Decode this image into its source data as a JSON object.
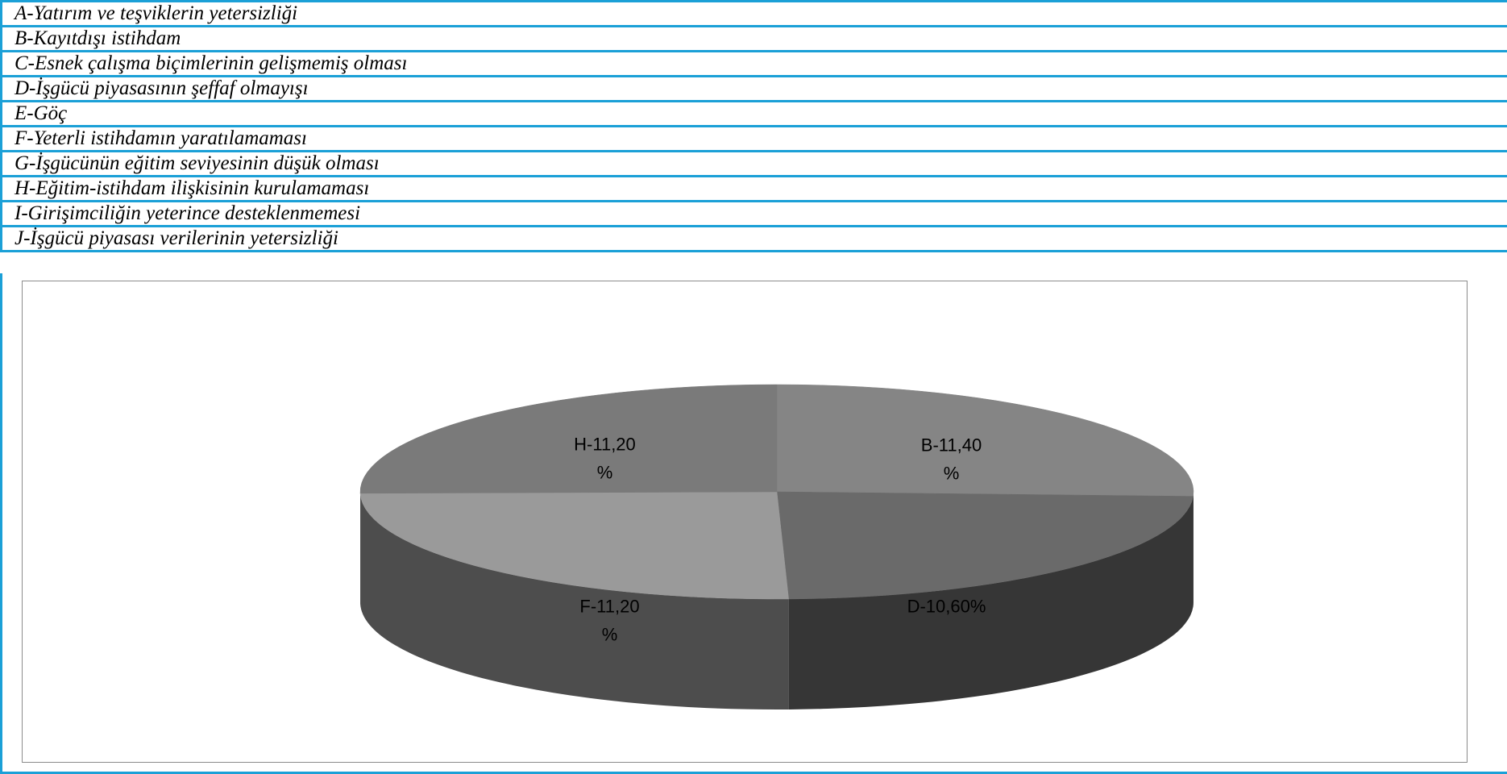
{
  "legend": {
    "rows": [
      {
        "text": "A-Yatırım ve teşviklerin yetersizliği"
      },
      {
        "text": "B-Kayıtdışı istihdam"
      },
      {
        "text": "C-Esnek çalışma biçimlerinin gelişmemiş olması"
      },
      {
        "text": "D-İşgücü piyasasının şeffaf olmayışı"
      },
      {
        "text": "E-Göç"
      },
      {
        "text": "F-Yeterli istihdamın yaratılamaması"
      },
      {
        "text": "G-İşgücünün eğitim seviyesinin düşük olması"
      },
      {
        "text": "H-Eğitim-istihdam ilişkisinin kurulamaması"
      },
      {
        "text": "I-Girişimciliğin yeterince desteklenmemesi"
      },
      {
        "text": "J-İşgücü piyasası verilerinin yetersizliği"
      }
    ]
  },
  "chart_data": {
    "type": "pie",
    "style": "3d",
    "title": "",
    "slices": [
      {
        "category": "B",
        "value": 11.4,
        "label_lines": [
          "B-11,40",
          "%"
        ],
        "top_color": "#858585",
        "side_color": "#3f3f3f"
      },
      {
        "category": "D",
        "value": 10.6,
        "label_lines": [
          "D-10,60%"
        ],
        "top_color": "#6a6a6a",
        "side_color": "#363636"
      },
      {
        "category": "F",
        "value": 11.2,
        "label_lines": [
          "F-11,20",
          "%"
        ],
        "top_color": "#9a9a9a",
        "side_color": "#4d4d4d"
      },
      {
        "category": "H",
        "value": 11.2,
        "label_lines": [
          "H-11,20",
          "%"
        ],
        "top_color": "#7a7a7a",
        "side_color": "#4a4a4a"
      }
    ],
    "legend_position": "top",
    "grid": false
  }
}
